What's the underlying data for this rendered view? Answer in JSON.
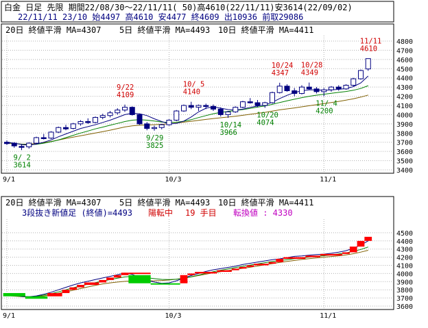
{
  "header": {
    "line1": "白金 日足 先限 期間22/08/30～22/11/11( 50)高4610(22/11/11)安3614(22/09/02)",
    "line2": "22/11/11 23/10 始4497 高4610 安4477 終4609 出10936 前取29086"
  },
  "colors": {
    "ma20": "#806000",
    "ma5": "#000080",
    "ma10": "#008000",
    "up": "#ffffff",
    "down": "#000080",
    "annotation_high": "#d00000",
    "annotation_low": "#008000",
    "brick_up": "#ff0000",
    "brick_down": "#00cc00",
    "reversal_label": "#d00000",
    "switch_label": "#c000c0",
    "grid": "#b0b0b0"
  },
  "chart_data": [
    {
      "type": "candlestick",
      "legend": [
        {
          "label": "20日 終値平滑 MA=4307",
          "color": "#806000"
        },
        {
          "label": "5日 終値平滑 MA=4493",
          "color": "#000080"
        },
        {
          "label": "10日 終値平滑 MA=4411",
          "color": "#008000"
        }
      ],
      "ylim": [
        3400,
        4800
      ],
      "yticks": [
        3400,
        3500,
        3600,
        3700,
        3800,
        3900,
        4000,
        4100,
        4200,
        4300,
        4400,
        4500,
        4600,
        4700,
        4800
      ],
      "xticks": [
        {
          "index": 0,
          "label": "9/1"
        },
        {
          "index": 22,
          "label": "10/3"
        },
        {
          "index": 43,
          "label": "11/1"
        }
      ],
      "ohlc": [
        [
          3700,
          3720,
          3670,
          3685
        ],
        [
          3690,
          3700,
          3640,
          3660
        ],
        [
          3655,
          3680,
          3614,
          3645
        ],
        [
          3650,
          3700,
          3630,
          3690
        ],
        [
          3690,
          3760,
          3680,
          3750
        ],
        [
          3750,
          3790,
          3730,
          3740
        ],
        [
          3745,
          3820,
          3735,
          3810
        ],
        [
          3810,
          3870,
          3800,
          3860
        ],
        [
          3860,
          3890,
          3830,
          3845
        ],
        [
          3850,
          3910,
          3840,
          3900
        ],
        [
          3900,
          3940,
          3880,
          3925
        ],
        [
          3925,
          3960,
          3900,
          3915
        ],
        [
          3915,
          3980,
          3905,
          3970
        ],
        [
          3970,
          4010,
          3950,
          3990
        ],
        [
          3990,
          4040,
          3970,
          4020
        ],
        [
          4020,
          4070,
          4000,
          4050
        ],
        [
          4050,
          4109,
          4030,
          4080
        ],
        [
          4080,
          4090,
          3990,
          4000
        ],
        [
          4000,
          4010,
          3890,
          3900
        ],
        [
          3900,
          3920,
          3830,
          3850
        ],
        [
          3850,
          3880,
          3825,
          3860
        ],
        [
          3860,
          3900,
          3840,
          3890
        ],
        [
          3890,
          3950,
          3880,
          3940
        ],
        [
          3940,
          4050,
          3930,
          4040
        ],
        [
          4040,
          4110,
          4030,
          4100
        ],
        [
          4100,
          4140,
          4060,
          4080
        ],
        [
          4080,
          4110,
          4040,
          4100
        ],
        [
          4100,
          4120,
          4060,
          4090
        ],
        [
          4090,
          4110,
          4040,
          4060
        ],
        [
          4060,
          4080,
          3980,
          4000
        ],
        [
          4000,
          4040,
          3966,
          4030
        ],
        [
          4030,
          4090,
          4020,
          4080
        ],
        [
          4080,
          4150,
          4070,
          4140
        ],
        [
          4140,
          4180,
          4120,
          4130
        ],
        [
          4130,
          4160,
          4080,
          4100
        ],
        [
          4100,
          4140,
          4074,
          4130
        ],
        [
          4130,
          4250,
          4120,
          4240
        ],
        [
          4240,
          4347,
          4230,
          4310
        ],
        [
          4310,
          4330,
          4250,
          4260
        ],
        [
          4260,
          4290,
          4200,
          4230
        ],
        [
          4230,
          4320,
          4220,
          4300
        ],
        [
          4300,
          4349,
          4270,
          4280
        ],
        [
          4280,
          4300,
          4230,
          4250
        ],
        [
          4250,
          4290,
          4200,
          4270
        ],
        [
          4270,
          4310,
          4250,
          4300
        ],
        [
          4300,
          4320,
          4260,
          4280
        ],
        [
          4280,
          4330,
          4270,
          4320
        ],
        [
          4320,
          4400,
          4310,
          4390
        ],
        [
          4390,
          4490,
          4380,
          4480
        ],
        [
          4497,
          4610,
          4477,
          4609
        ]
      ],
      "ma": {
        "ma20": [
          3690,
          3686,
          3680,
          3679,
          3686,
          3695,
          3708,
          3724,
          3740,
          3755,
          3770,
          3785,
          3800,
          3815,
          3831,
          3848,
          3866,
          3878,
          3885,
          3888,
          3891,
          3895,
          3900,
          3908,
          3918,
          3928,
          3938,
          3948,
          3958,
          3966,
          3974,
          3983,
          3993,
          4004,
          4014,
          4025,
          4038,
          4052,
          4063,
          4073,
          4085,
          4097,
          4108,
          4120,
          4132,
          4144,
          4157,
          4173,
          4191,
          4213
        ],
        "ma5": [
          3700,
          3690,
          3675,
          3668,
          3680,
          3700,
          3725,
          3760,
          3790,
          3820,
          3850,
          3870,
          3890,
          3915,
          3940,
          3970,
          4000,
          4015,
          4010,
          3990,
          3955,
          3925,
          3900,
          3905,
          3930,
          3975,
          4030,
          4070,
          4085,
          4070,
          4055,
          4050,
          4060,
          4080,
          4095,
          4105,
          4135,
          4175,
          4210,
          4240,
          4260,
          4270,
          4270,
          4265,
          4270,
          4275,
          4285,
          4305,
          4345,
          4420
        ],
        "ma10": [
          3695,
          3688,
          3678,
          3672,
          3678,
          3690,
          3705,
          3725,
          3750,
          3775,
          3800,
          3822,
          3845,
          3865,
          3885,
          3905,
          3925,
          3940,
          3945,
          3940,
          3930,
          3920,
          3915,
          3918,
          3928,
          3945,
          3968,
          3990,
          4010,
          4025,
          4035,
          4045,
          4055,
          4068,
          4082,
          4095,
          4112,
          4132,
          4150,
          4168,
          4185,
          4200,
          4212,
          4222,
          4232,
          4242,
          4252,
          4265,
          4285,
          4315
        ]
      },
      "annotations": [
        {
          "index": 2,
          "lines": [
            "9/ 2",
            "3614"
          ],
          "kind": "low"
        },
        {
          "index": 16,
          "lines": [
            "9/22",
            "4109"
          ],
          "kind": "high"
        },
        {
          "index": 20,
          "lines": [
            "9/29",
            "3825"
          ],
          "kind": "low"
        },
        {
          "index": 25,
          "lines": [
            "10/ 5",
            "4140"
          ],
          "kind": "high"
        },
        {
          "index": 30,
          "lines": [
            "10/14",
            "3966"
          ],
          "kind": "low"
        },
        {
          "index": 35,
          "lines": [
            "10/20",
            "4074"
          ],
          "kind": "low"
        },
        {
          "index": 37,
          "lines": [
            "10/24",
            "4347"
          ],
          "kind": "high"
        },
        {
          "index": 41,
          "lines": [
            "10/28",
            "4349"
          ],
          "kind": "high"
        },
        {
          "index": 43,
          "lines": [
            "11/ 4",
            "4200"
          ],
          "kind": "low"
        },
        {
          "index": 49,
          "lines": [
            "11/11",
            "4610"
          ],
          "kind": "high"
        }
      ]
    },
    {
      "type": "three-line-break",
      "legend": [
        {
          "label": "20日 終値平滑 MA=4307",
          "color": "#806000"
        },
        {
          "label": "5日 終値平滑 MA=4493",
          "color": "#000080"
        },
        {
          "label": "10日 終値平滑 MA=4411",
          "color": "#008000"
        }
      ],
      "info": {
        "label": "3段抜き新値足 (終値)=4493",
        "status": "陽転中",
        "count": "19 手目",
        "switch": "転換値 : 4330"
      },
      "ylim": [
        3600,
        4600
      ],
      "yticks": [
        3600,
        3700,
        3800,
        3900,
        4000,
        4100,
        4200,
        4300,
        4400,
        4500
      ],
      "xticks": [
        {
          "index": 0,
          "label": "9/1"
        },
        {
          "index": 22,
          "label": "10/3"
        },
        {
          "index": 43,
          "label": "11/1"
        }
      ],
      "bricks": [
        {
          "start": 0,
          "end": 3,
          "from": 3760,
          "to": 3720,
          "dir": "down"
        },
        {
          "start": 3,
          "end": 6,
          "from": 3720,
          "to": 3690,
          "dir": "down"
        },
        {
          "start": 6,
          "end": 8,
          "from": 3720,
          "to": 3760,
          "dir": "up"
        },
        {
          "start": 8,
          "end": 9,
          "from": 3760,
          "to": 3800,
          "dir": "up"
        },
        {
          "start": 9,
          "end": 10,
          "from": 3800,
          "to": 3830,
          "dir": "up"
        },
        {
          "start": 10,
          "end": 11,
          "from": 3830,
          "to": 3860,
          "dir": "up"
        },
        {
          "start": 11,
          "end": 13,
          "from": 3860,
          "to": 3890,
          "dir": "up"
        },
        {
          "start": 13,
          "end": 14,
          "from": 3890,
          "to": 3920,
          "dir": "up"
        },
        {
          "start": 14,
          "end": 15,
          "from": 3920,
          "to": 3950,
          "dir": "up"
        },
        {
          "start": 15,
          "end": 16,
          "from": 3950,
          "to": 3980,
          "dir": "up"
        },
        {
          "start": 16,
          "end": 17,
          "from": 3980,
          "to": 4010,
          "dir": "up"
        },
        {
          "start": 17,
          "end": 20,
          "from": 4010,
          "to": 4000,
          "dir": "up"
        },
        {
          "start": 17,
          "end": 20,
          "from": 3980,
          "to": 3880,
          "dir": "down"
        },
        {
          "start": 20,
          "end": 24,
          "from": 3870,
          "to": 3880,
          "dir": "down"
        },
        {
          "start": 24,
          "end": 25,
          "from": 3880,
          "to": 3980,
          "dir": "up"
        },
        {
          "start": 25,
          "end": 26,
          "from": 3980,
          "to": 4000,
          "dir": "up"
        },
        {
          "start": 26,
          "end": 29,
          "from": 4000,
          "to": 4020,
          "dir": "up"
        },
        {
          "start": 29,
          "end": 31,
          "from": 4020,
          "to": 4040,
          "dir": "up"
        },
        {
          "start": 31,
          "end": 32,
          "from": 4040,
          "to": 4060,
          "dir": "up"
        },
        {
          "start": 32,
          "end": 33,
          "from": 4060,
          "to": 4080,
          "dir": "up"
        },
        {
          "start": 33,
          "end": 34,
          "from": 4080,
          "to": 4100,
          "dir": "up"
        },
        {
          "start": 34,
          "end": 36,
          "from": 4100,
          "to": 4120,
          "dir": "up"
        },
        {
          "start": 36,
          "end": 37,
          "from": 4120,
          "to": 4140,
          "dir": "up"
        },
        {
          "start": 37,
          "end": 38,
          "from": 4140,
          "to": 4180,
          "dir": "up"
        },
        {
          "start": 38,
          "end": 41,
          "from": 4180,
          "to": 4200,
          "dir": "up"
        },
        {
          "start": 41,
          "end": 43,
          "from": 4200,
          "to": 4220,
          "dir": "up"
        },
        {
          "start": 43,
          "end": 46,
          "from": 4220,
          "to": 4240,
          "dir": "up"
        },
        {
          "start": 46,
          "end": 47,
          "from": 4240,
          "to": 4260,
          "dir": "up"
        },
        {
          "start": 47,
          "end": 48,
          "from": 4260,
          "to": 4330,
          "dir": "up"
        },
        {
          "start": 48,
          "end": 49,
          "from": 4330,
          "to": 4400,
          "dir": "up"
        },
        {
          "start": 49,
          "end": 50,
          "from": 4400,
          "to": 4450,
          "dir": "up"
        }
      ],
      "ma": {
        "ma20": [
          3730,
          3722,
          3715,
          3712,
          3715,
          3725,
          3740,
          3757,
          3775,
          3795,
          3815,
          3835,
          3855,
          3872,
          3885,
          3895,
          3903,
          3908,
          3910,
          3910,
          3911,
          3914,
          3920,
          3930,
          3943,
          3958,
          3975,
          3992,
          4008,
          4022,
          4036,
          4050,
          4063,
          4077,
          4092,
          4107,
          4121,
          4135,
          4148,
          4160,
          4172,
          4182,
          4192,
          4200,
          4208,
          4217,
          4228,
          4243,
          4262,
          4285
        ],
        "ma5": [
          3750,
          3735,
          3720,
          3715,
          3725,
          3745,
          3770,
          3800,
          3830,
          3860,
          3885,
          3905,
          3925,
          3945,
          3965,
          3985,
          4005,
          3990,
          3950,
          3915,
          3895,
          3880,
          3885,
          3910,
          3945,
          3975,
          4000,
          4025,
          4045,
          4060,
          4075,
          4090,
          4110,
          4125,
          4140,
          4155,
          4170,
          4180,
          4195,
          4210,
          4215,
          4225,
          4232,
          4238,
          4248,
          4262,
          4280,
          4310,
          4350,
          4400
        ],
        "ma10": [
          3740,
          3728,
          3718,
          3714,
          3720,
          3735,
          3752,
          3775,
          3800,
          3825,
          3848,
          3868,
          3888,
          3907,
          3925,
          3942,
          3958,
          3965,
          3960,
          3948,
          3937,
          3928,
          3925,
          3930,
          3942,
          3960,
          3980,
          4002,
          4022,
          4040,
          4056,
          4072,
          4088,
          4103,
          4118,
          4133,
          4147,
          4159,
          4170,
          4182,
          4192,
          4202,
          4210,
          4218,
          4228,
          4240,
          4253,
          4272,
          4295,
          4325
        ]
      }
    }
  ]
}
